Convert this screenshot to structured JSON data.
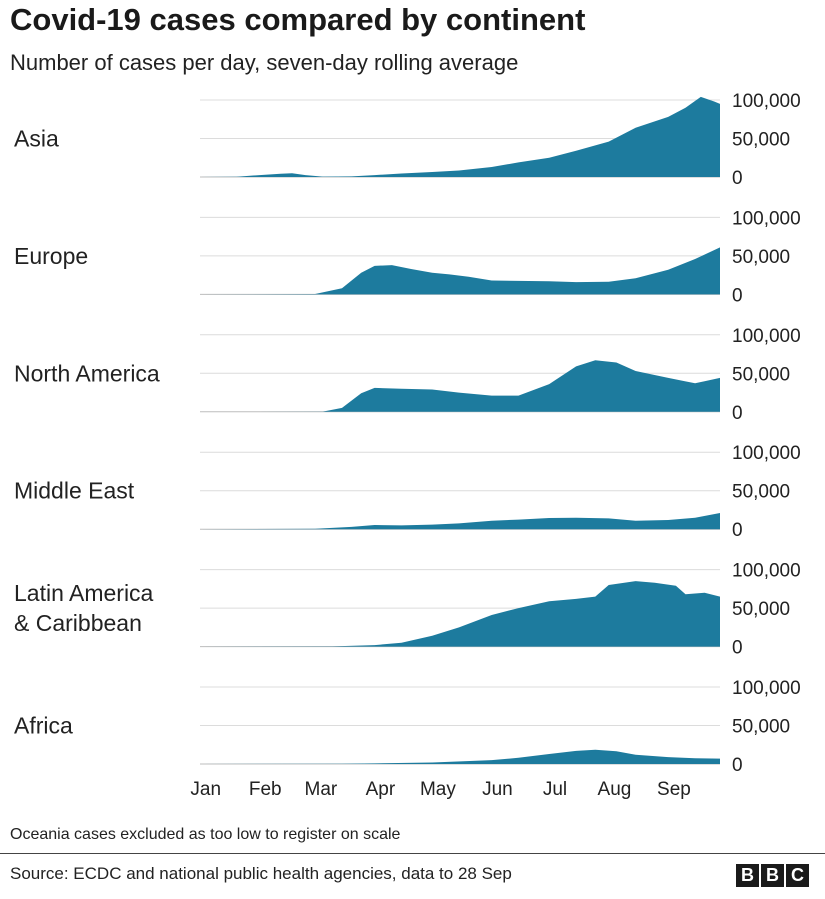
{
  "title": "Covid-19 cases compared by continent",
  "subtitle": "Number of cases per day, seven-day rolling average",
  "note": "Oceania cases excluded as too low to register on scale",
  "source": "Source: ECDC and national public health agencies, data to 28 Sep",
  "logo": [
    "B",
    "B",
    "C"
  ],
  "chart_data": {
    "type": "area",
    "color": "#1d7b9e",
    "x_months": [
      "Jan",
      "Feb",
      "Mar",
      "Apr",
      "May",
      "Jun",
      "Jul",
      "Aug",
      "Sep"
    ],
    "x_range": [
      "1 Jan",
      "28 Sep"
    ],
    "y_ticks": [
      "100,000",
      "50,000",
      "0"
    ],
    "y_tick_values": [
      100000,
      50000,
      0
    ],
    "ylim": [
      0,
      100000
    ],
    "grid": true,
    "series": [
      {
        "name": "Asia",
        "points": [
          [
            "Jan 1",
            0
          ],
          [
            "Jan 20",
            300
          ],
          [
            "Feb 1",
            2500
          ],
          [
            "Feb 12",
            4200
          ],
          [
            "Feb 18",
            5000
          ],
          [
            "Feb 25",
            2500
          ],
          [
            "Mar 5",
            500
          ],
          [
            "Mar 20",
            800
          ],
          [
            "Apr 1",
            2500
          ],
          [
            "Apr 15",
            4500
          ],
          [
            "May 1",
            6500
          ],
          [
            "May 15",
            8500
          ],
          [
            "Jun 1",
            13000
          ],
          [
            "Jun 15",
            19000
          ],
          [
            "Jul 1",
            25000
          ],
          [
            "Jul 15",
            34000
          ],
          [
            "Aug 1",
            46000
          ],
          [
            "Aug 15",
            64000
          ],
          [
            "Sep 1",
            78000
          ],
          [
            "Sep 10",
            90000
          ],
          [
            "Sep 18",
            104000
          ],
          [
            "Sep 25",
            98000
          ],
          [
            "Sep 28",
            95000
          ]
        ]
      },
      {
        "name": "Europe",
        "points": [
          [
            "Jan 1",
            0
          ],
          [
            "Mar 1",
            500
          ],
          [
            "Mar 15",
            8000
          ],
          [
            "Mar 25",
            28000
          ],
          [
            "Apr 1",
            37000
          ],
          [
            "Apr 10",
            38000
          ],
          [
            "Apr 20",
            33000
          ],
          [
            "May 1",
            28000
          ],
          [
            "May 10",
            26000
          ],
          [
            "May 20",
            23000
          ],
          [
            "Jun 1",
            18000
          ],
          [
            "Jun 15",
            17500
          ],
          [
            "Jul 1",
            17000
          ],
          [
            "Jul 15",
            16000
          ],
          [
            "Aug 1",
            16500
          ],
          [
            "Aug 15",
            21000
          ],
          [
            "Sep 1",
            32000
          ],
          [
            "Sep 15",
            46000
          ],
          [
            "Sep 28",
            61000
          ]
        ]
      },
      {
        "name": "North America",
        "points": [
          [
            "Jan 1",
            0
          ],
          [
            "Mar 5",
            300
          ],
          [
            "Mar 15",
            5000
          ],
          [
            "Mar 25",
            24000
          ],
          [
            "Apr 1",
            31000
          ],
          [
            "Apr 15",
            30000
          ],
          [
            "May 1",
            29000
          ],
          [
            "May 15",
            25000
          ],
          [
            "Jun 1",
            21000
          ],
          [
            "Jun 15",
            21000
          ],
          [
            "Jul 1",
            36000
          ],
          [
            "Jul 15",
            59000
          ],
          [
            "Jul 25",
            67000
          ],
          [
            "Aug 5",
            64000
          ],
          [
            "Aug 15",
            53000
          ],
          [
            "Sep 1",
            44000
          ],
          [
            "Sep 15",
            37000
          ],
          [
            "Sep 28",
            44000
          ]
        ]
      },
      {
        "name": "Middle East",
        "points": [
          [
            "Jan 1",
            0
          ],
          [
            "Mar 1",
            500
          ],
          [
            "Mar 20",
            3000
          ],
          [
            "Apr 1",
            5500
          ],
          [
            "Apr 15",
            5000
          ],
          [
            "May 1",
            6000
          ],
          [
            "May 15",
            7500
          ],
          [
            "Jun 1",
            11000
          ],
          [
            "Jun 15",
            12500
          ],
          [
            "Jul 1",
            14500
          ],
          [
            "Jul 15",
            15000
          ],
          [
            "Aug 1",
            14000
          ],
          [
            "Aug 15",
            11000
          ],
          [
            "Sep 1",
            12000
          ],
          [
            "Sep 15",
            15000
          ],
          [
            "Sep 28",
            21000
          ]
        ]
      },
      {
        "name": "Latin America & Caribbean",
        "points": [
          [
            "Jan 1",
            0
          ],
          [
            "Mar 10",
            200
          ],
          [
            "Apr 1",
            2000
          ],
          [
            "Apr 15",
            5000
          ],
          [
            "May 1",
            14000
          ],
          [
            "May 15",
            25000
          ],
          [
            "Jun 1",
            41000
          ],
          [
            "Jun 15",
            50000
          ],
          [
            "Jul 1",
            59000
          ],
          [
            "Jul 15",
            62000
          ],
          [
            "Jul 25",
            65000
          ],
          [
            "Aug 1",
            80000
          ],
          [
            "Aug 15",
            85000
          ],
          [
            "Aug 25",
            83000
          ],
          [
            "Sep 5",
            79000
          ],
          [
            "Sep 10",
            68000
          ],
          [
            "Sep 20",
            70000
          ],
          [
            "Sep 28",
            65000
          ]
        ]
      },
      {
        "name": "Africa",
        "points": [
          [
            "Jan 1",
            0
          ],
          [
            "Mar 15",
            200
          ],
          [
            "Apr 1",
            800
          ],
          [
            "May 1",
            2000
          ],
          [
            "Jun 1",
            5000
          ],
          [
            "Jun 15",
            8000
          ],
          [
            "Jul 1",
            13000
          ],
          [
            "Jul 15",
            17000
          ],
          [
            "Jul 25",
            18500
          ],
          [
            "Aug 5",
            16500
          ],
          [
            "Aug 15",
            12000
          ],
          [
            "Sep 1",
            9000
          ],
          [
            "Sep 15",
            7500
          ],
          [
            "Sep 28",
            7000
          ]
        ]
      }
    ],
    "series_labels": [
      [
        "Asia"
      ],
      [
        "Europe"
      ],
      [
        "North America"
      ],
      [
        "Middle East"
      ],
      [
        "Latin America",
        "& Caribbean"
      ],
      [
        "Africa"
      ]
    ]
  }
}
